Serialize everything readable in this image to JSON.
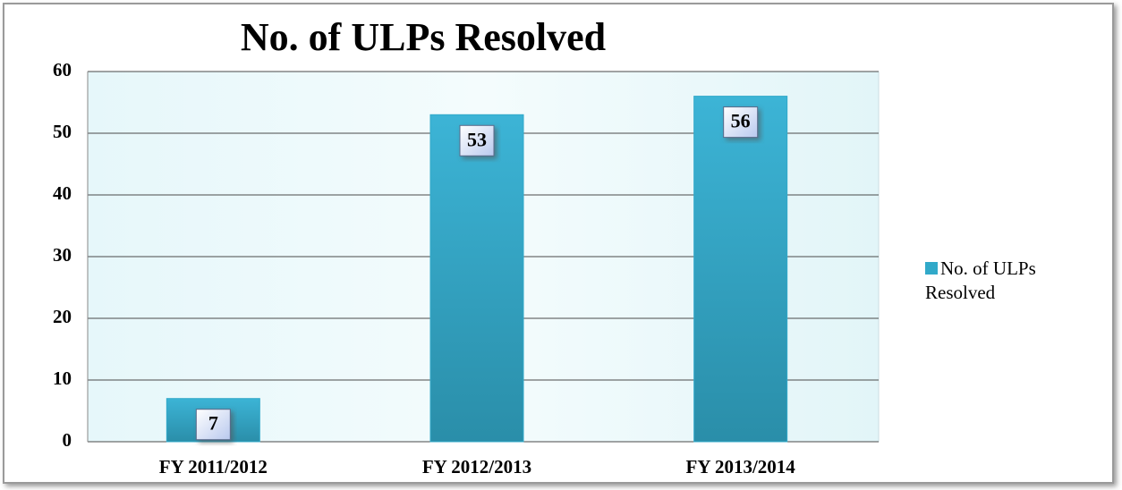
{
  "chart_data": {
    "type": "bar",
    "title": "No. of ULPs Resolved",
    "categories": [
      "FY 2011/2012",
      "FY 2012/2013",
      "FY 2013/2014"
    ],
    "series": [
      {
        "name": "No. of ULPs Resolved",
        "color": "#31a9c9",
        "values": [
          7,
          53,
          56
        ]
      }
    ],
    "ylim": [
      0,
      60
    ],
    "yticks": [
      0,
      10,
      20,
      30,
      40,
      50,
      60
    ],
    "grid": true,
    "legend": "right"
  }
}
